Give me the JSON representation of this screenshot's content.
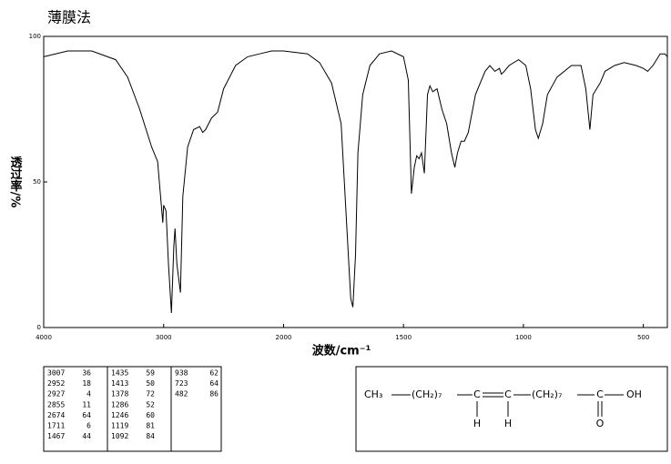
{
  "chart_data": {
    "type": "line",
    "title": "薄膜法",
    "x_label": "波数/cm⁻¹",
    "y_label": "透过率/%",
    "x": [
      4000,
      3800,
      3600,
      3400,
      3300,
      3200,
      3100,
      3050,
      3007,
      3000,
      2980,
      2960,
      2935,
      2915,
      2905,
      2890,
      2860,
      2840,
      2800,
      2750,
      2700,
      2674,
      2650,
      2600,
      2550,
      2500,
      2400,
      2300,
      2200,
      2100,
      2000,
      1900,
      1850,
      1800,
      1760,
      1740,
      1720,
      1711,
      1700,
      1690,
      1670,
      1640,
      1600,
      1550,
      1500,
      1480,
      1467,
      1455,
      1445,
      1435,
      1425,
      1413,
      1400,
      1390,
      1378,
      1360,
      1340,
      1320,
      1300,
      1286,
      1275,
      1260,
      1246,
      1230,
      1200,
      1160,
      1140,
      1119,
      1100,
      1092,
      1080,
      1060,
      1020,
      990,
      970,
      950,
      938,
      920,
      900,
      860,
      800,
      760,
      740,
      723,
      710,
      680,
      660,
      620,
      580,
      530,
      500,
      482,
      460,
      430,
      410,
      400
    ],
    "series": [
      {
        "color": "#000000",
        "values": [
          93,
          95,
          95,
          92,
          86,
          75,
          62,
          57,
          36,
          42,
          40,
          22,
          5,
          28,
          34,
          22,
          12,
          45,
          62,
          68,
          69,
          67,
          68,
          72,
          74,
          82,
          90,
          93,
          94,
          95,
          95,
          94,
          91,
          84,
          70,
          40,
          10,
          7,
          25,
          60,
          80,
          90,
          94,
          95,
          93,
          85,
          46,
          55,
          59,
          58,
          60,
          53,
          80,
          83,
          81,
          82,
          75,
          70,
          60,
          55,
          60,
          64,
          64,
          67,
          80,
          88,
          90,
          88,
          89,
          87,
          88,
          90,
          92,
          90,
          82,
          68,
          65,
          70,
          80,
          86,
          90,
          90,
          82,
          68,
          80,
          84,
          88,
          90,
          91,
          90,
          89,
          88,
          90,
          94,
          94,
          93
        ]
      }
    ],
    "xlim": [
      4000,
      400
    ],
    "xticks": [
      4000,
      3000,
      2000,
      1500,
      1000,
      500
    ],
    "x_scale_break": 2000,
    "ylim": [
      0,
      100
    ],
    "yticks": [
      0,
      50,
      100
    ]
  },
  "peak_table": {
    "columns": [
      [
        [
          3007,
          36
        ],
        [
          2952,
          18
        ],
        [
          2927,
          4
        ],
        [
          2855,
          11
        ],
        [
          2674,
          64
        ],
        [
          1711,
          6
        ],
        [
          1467,
          44
        ]
      ],
      [
        [
          1435,
          59
        ],
        [
          1413,
          50
        ],
        [
          1378,
          72
        ],
        [
          1286,
          52
        ],
        [
          1246,
          60
        ],
        [
          1119,
          81
        ],
        [
          1092,
          84
        ]
      ],
      [
        [
          938,
          62
        ],
        [
          723,
          64
        ],
        [
          482,
          86
        ]
      ]
    ]
  },
  "structure": {
    "chain": [
      "CH₃",
      "(CH₂)₇",
      "C",
      "C",
      "(CH₂)₇",
      "C",
      "OH"
    ],
    "hydrogens": [
      "H",
      "H"
    ],
    "oxygen": "O"
  }
}
